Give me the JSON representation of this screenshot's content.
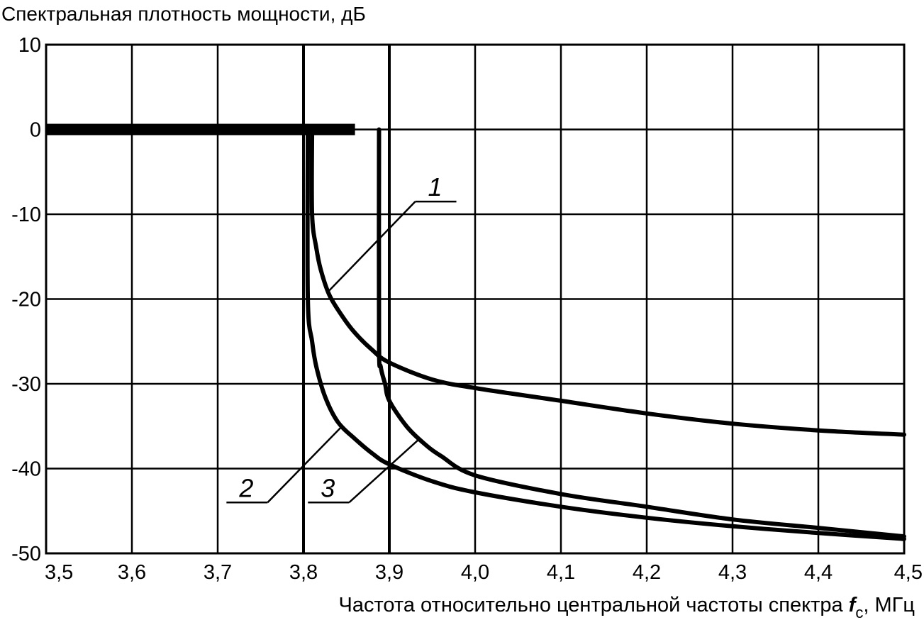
{
  "chart_data": {
    "type": "line",
    "title": "Спектральная плотность мощности, дБ",
    "xlabel": {
      "main": "Частота относительно центральной частоты спектра ",
      "symbol": "f",
      "subscript": "c",
      "unit": ", МГц"
    },
    "xlim": [
      3.5,
      4.5
    ],
    "ylim": [
      -50,
      10
    ],
    "grid": true,
    "x_ticks": [
      {
        "value": 3.5,
        "label": "3,5"
      },
      {
        "value": 3.6,
        "label": "3,6"
      },
      {
        "value": 3.7,
        "label": "3,7"
      },
      {
        "value": 3.8,
        "label": "3,8"
      },
      {
        "value": 3.9,
        "label": "3,9"
      },
      {
        "value": 4.0,
        "label": "4,0"
      },
      {
        "value": 4.1,
        "label": "4,1"
      },
      {
        "value": 4.2,
        "label": "4,2"
      },
      {
        "value": 4.3,
        "label": "4,3"
      },
      {
        "value": 4.4,
        "label": "4,4"
      },
      {
        "value": 4.5,
        "label": "4,5"
      }
    ],
    "y_ticks": [
      {
        "value": 10,
        "label": "10"
      },
      {
        "value": 0,
        "label": "0"
      },
      {
        "value": -10,
        "label": "-10"
      },
      {
        "value": -20,
        "label": "-20"
      },
      {
        "value": -30,
        "label": "-30"
      },
      {
        "value": -40,
        "label": "-40"
      },
      {
        "value": -50,
        "label": "-50"
      }
    ],
    "baseline": {
      "x": [
        3.5,
        3.86
      ],
      "y": [
        0,
        0
      ]
    },
    "series": [
      {
        "name": "1",
        "x": [
          3.81,
          3.81,
          3.815,
          3.82,
          3.83,
          3.845,
          3.86,
          3.88,
          3.9,
          3.95,
          4.0,
          4.1,
          4.2,
          4.3,
          4.4,
          4.5
        ],
        "y": [
          0,
          -10,
          -14,
          -16.5,
          -19.5,
          -22,
          -24,
          -26,
          -27.5,
          -29.5,
          -30.5,
          -32,
          -33.5,
          -34.7,
          -35.5,
          -36
        ]
      },
      {
        "name": "2",
        "x": [
          3.805,
          3.805,
          3.81,
          3.815,
          3.825,
          3.84,
          3.86,
          3.88,
          3.9,
          3.95,
          4.0,
          4.1,
          4.2,
          4.3,
          4.4,
          4.5
        ],
        "y": [
          0,
          -20,
          -25,
          -28,
          -31.5,
          -34.5,
          -36.5,
          -38.2,
          -39.5,
          -41.5,
          -42.8,
          -44.5,
          -45.8,
          -46.8,
          -47.6,
          -48.3
        ]
      },
      {
        "name": "3",
        "x": [
          3.888,
          3.888,
          3.89,
          3.895,
          3.9,
          3.92,
          3.94,
          3.96,
          4.0,
          4.1,
          4.2,
          4.3,
          4.4,
          4.5
        ],
        "y": [
          0,
          -25,
          -28,
          -30,
          -32,
          -35,
          -37,
          -38.5,
          -40.8,
          -43,
          -44.5,
          -46,
          -47,
          -48
        ]
      }
    ],
    "callouts": [
      {
        "label": "1",
        "x": 3.955,
        "y": -8.5,
        "target_x": 3.83,
        "target_y": -19
      },
      {
        "label": "2",
        "x": 3.735,
        "y": -44,
        "target_x": 3.845,
        "target_y": -35
      },
      {
        "label": "3",
        "x": 3.83,
        "y": -44,
        "target_x": 3.935,
        "target_y": -36.5
      }
    ]
  }
}
